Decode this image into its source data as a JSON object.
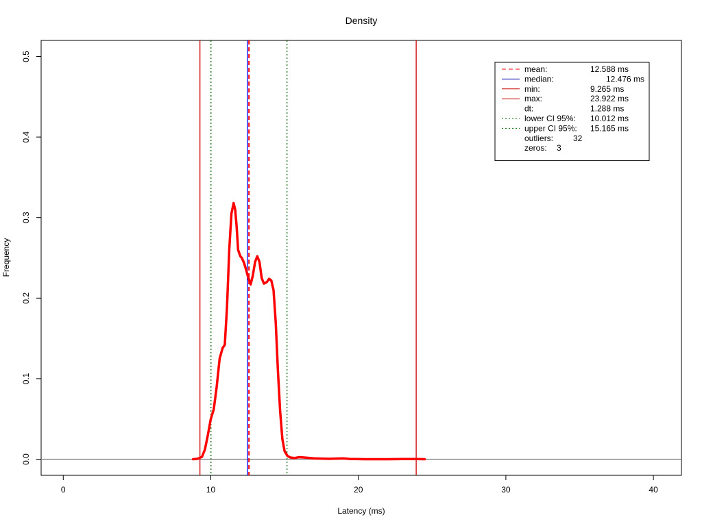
{
  "chart_data": {
    "type": "line",
    "title": "Density",
    "xlabel": "Latency (ms)",
    "ylabel": "Frequency",
    "xlim": [
      -1.5,
      41.9
    ],
    "ylim": [
      -0.02,
      0.52
    ],
    "xticks": [
      0,
      10,
      20,
      30,
      40
    ],
    "xtick_labels": [
      "0",
      "10",
      "20",
      "30",
      "40"
    ],
    "yticks": [
      0.0,
      0.1,
      0.2,
      0.3,
      0.4,
      0.5
    ],
    "ytick_labels": [
      "0.0",
      "0.1",
      "0.2",
      "0.3",
      "0.4",
      "0.5"
    ],
    "grid": false,
    "legend_position": "top-right",
    "density": {
      "color": "#ff0000",
      "x": [
        8.8,
        9.1,
        9.4,
        9.6,
        9.8,
        10.0,
        10.2,
        10.4,
        10.6,
        10.8,
        10.95,
        11.1,
        11.25,
        11.4,
        11.55,
        11.65,
        11.75,
        11.85,
        12.0,
        12.1,
        12.25,
        12.4,
        12.5,
        12.7,
        12.85,
        13.0,
        13.15,
        13.3,
        13.45,
        13.6,
        13.8,
        13.95,
        14.1,
        14.25,
        14.4,
        14.55,
        14.7,
        14.85,
        15.0,
        15.2,
        15.4,
        15.7,
        16.0,
        16.4,
        17.0,
        18.0,
        19.0,
        19.4,
        19.8,
        20.5,
        22.0,
        23.0,
        24.0,
        24.5
      ],
      "y": [
        0.0,
        0.0005,
        0.003,
        0.012,
        0.03,
        0.05,
        0.062,
        0.09,
        0.125,
        0.138,
        0.142,
        0.19,
        0.26,
        0.305,
        0.318,
        0.31,
        0.29,
        0.26,
        0.252,
        0.25,
        0.244,
        0.235,
        0.228,
        0.217,
        0.228,
        0.245,
        0.252,
        0.245,
        0.225,
        0.218,
        0.22,
        0.224,
        0.222,
        0.21,
        0.17,
        0.11,
        0.06,
        0.025,
        0.01,
        0.004,
        0.002,
        0.0015,
        0.0025,
        0.002,
        0.001,
        0.0005,
        0.001,
        0.0003,
        0.0002,
        0.0,
        0.0,
        0.0002,
        0.0002,
        0.0
      ]
    },
    "reference_lines": [
      {
        "name": "min",
        "x": 9.265,
        "color": "#cc0000",
        "style": "solid"
      },
      {
        "name": "lower CI 95%",
        "x": 10.012,
        "color": "#006400",
        "style": "dotted"
      },
      {
        "name": "median",
        "x": 12.476,
        "color": "#0000ff",
        "style": "solid"
      },
      {
        "name": "mean",
        "x": 12.588,
        "color": "#ff0000",
        "style": "dashed"
      },
      {
        "name": "upper CI 95%",
        "x": 15.165,
        "color": "#006400",
        "style": "dotted"
      },
      {
        "name": "max",
        "x": 23.922,
        "color": "#cc0000",
        "style": "solid"
      }
    ],
    "legend": [
      {
        "key": "mean",
        "label": "mean:",
        "value": "12.588 ms",
        "color": "#ff0000",
        "style": "dashed",
        "value_offset": 0
      },
      {
        "key": "median",
        "label": "median:",
        "value": "12.476 ms",
        "color": "#0000aa",
        "style": "solid",
        "value_offset": 1
      },
      {
        "key": "min",
        "label": "min:",
        "value": "9.265 ms",
        "color": "#cc0000",
        "style": "solid",
        "value_offset": 0
      },
      {
        "key": "max",
        "label": "max:",
        "value": "23.922 ms",
        "color": "#cc0000",
        "style": "solid",
        "value_offset": 0
      },
      {
        "key": "dt",
        "label": "dt:",
        "value": "1.288 ms",
        "color": "",
        "style": "none",
        "value_offset": 0
      },
      {
        "key": "lower_ci",
        "label": "lower CI 95%:",
        "value": "10.012 ms",
        "color": "#006400",
        "style": "dotted",
        "value_offset": 0
      },
      {
        "key": "upper_ci",
        "label": "upper CI 95%:",
        "value": "15.165 ms",
        "color": "#006400",
        "style": "dotted",
        "value_offset": 0
      },
      {
        "key": "outliers",
        "label": "outliers:",
        "value": "32",
        "color": "",
        "style": "none",
        "value_offset": 2
      },
      {
        "key": "zeros",
        "label": "zeros:",
        "value": "3",
        "color": "",
        "style": "none",
        "value_offset": 3
      }
    ]
  }
}
